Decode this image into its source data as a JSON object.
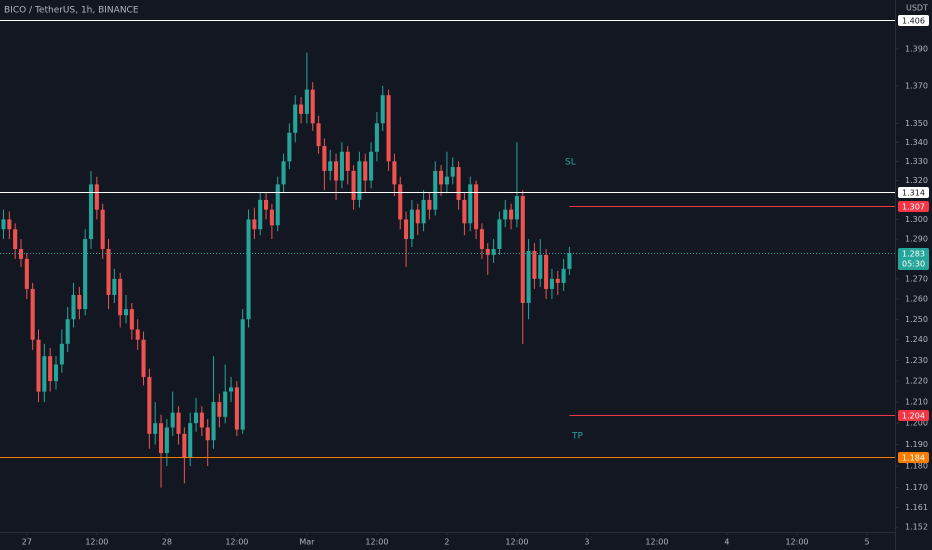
{
  "chart_data": {
    "type": "candlestick",
    "title": "BICO / TetherUS, 1h, BINANCE",
    "currency": "USDT",
    "log": true,
    "up_color": "#26a69a",
    "down_color": "#ef5350",
    "xlim": [
      -0.6,
      152.8
    ],
    "xticks": [
      {
        "value": 4,
        "label": "27"
      },
      {
        "value": 16,
        "label": "12:00"
      },
      {
        "value": 28,
        "label": "28"
      },
      {
        "value": 40,
        "label": "12:00"
      },
      {
        "value": 52,
        "label": "Mar"
      },
      {
        "value": 64,
        "label": "12:00"
      },
      {
        "value": 76,
        "label": "2"
      },
      {
        "value": 88,
        "label": "12:00"
      },
      {
        "value": 100,
        "label": "3"
      },
      {
        "value": 112,
        "label": "12:00"
      },
      {
        "value": 124,
        "label": "4"
      },
      {
        "value": 136,
        "label": "12:00"
      },
      {
        "value": 148,
        "label": "5"
      }
    ],
    "ylim": [
      1.148,
      1.417
    ],
    "yticks": [
      {
        "value": 1.39,
        "label": "1.390"
      },
      {
        "value": 1.37,
        "label": "1.370"
      },
      {
        "value": 1.35,
        "label": "1.350"
      },
      {
        "value": 1.34,
        "label": "1.340"
      },
      {
        "value": 1.33,
        "label": "1.330"
      },
      {
        "value": 1.32,
        "label": "1.320"
      },
      {
        "value": 1.3,
        "label": "1.300"
      },
      {
        "value": 1.29,
        "label": "1.290"
      },
      {
        "value": 1.27,
        "label": "1.270"
      },
      {
        "value": 1.26,
        "label": "1.260"
      },
      {
        "value": 1.25,
        "label": "1.250"
      },
      {
        "value": 1.24,
        "label": "1.240"
      },
      {
        "value": 1.23,
        "label": "1.230"
      },
      {
        "value": 1.22,
        "label": "1.220"
      },
      {
        "value": 1.21,
        "label": "1.210"
      },
      {
        "value": 1.2,
        "label": "1.200"
      },
      {
        "value": 1.19,
        "label": "1.190"
      },
      {
        "value": 1.18,
        "label": "1.180"
      },
      {
        "value": 1.17,
        "label": "1.170"
      },
      1.161,
      1.152
    ],
    "candles": [
      [
        1.295,
        1.305,
        1.29,
        1.3
      ],
      [
        1.3,
        1.304,
        1.29,
        1.295
      ],
      [
        1.295,
        1.298,
        1.28,
        1.285
      ],
      [
        1.285,
        1.29,
        1.276,
        1.28
      ],
      [
        1.28,
        1.283,
        1.26,
        1.265
      ],
      [
        1.265,
        1.268,
        1.235,
        1.24
      ],
      [
        1.24,
        1.245,
        1.21,
        1.215
      ],
      [
        1.215,
        1.238,
        1.21,
        1.232
      ],
      [
        1.232,
        1.236,
        1.215,
        1.22
      ],
      [
        1.22,
        1.232,
        1.216,
        1.228
      ],
      [
        1.228,
        1.245,
        1.224,
        1.238
      ],
      [
        1.238,
        1.256,
        1.234,
        1.25
      ],
      [
        1.25,
        1.268,
        1.246,
        1.262
      ],
      [
        1.262,
        1.266,
        1.25,
        1.255
      ],
      [
        1.255,
        1.295,
        1.252,
        1.29
      ],
      [
        1.29,
        1.325,
        1.285,
        1.318
      ],
      [
        1.318,
        1.322,
        1.3,
        1.305
      ],
      [
        1.305,
        1.308,
        1.28,
        1.285
      ],
      [
        1.285,
        1.29,
        1.255,
        1.262
      ],
      [
        1.262,
        1.275,
        1.258,
        1.27
      ],
      [
        1.27,
        1.273,
        1.246,
        1.252
      ],
      [
        1.252,
        1.262,
        1.248,
        1.255
      ],
      [
        1.255,
        1.258,
        1.24,
        1.245
      ],
      [
        1.245,
        1.25,
        1.235,
        1.24
      ],
      [
        1.24,
        1.244,
        1.218,
        1.222
      ],
      [
        1.222,
        1.226,
        1.188,
        1.195
      ],
      [
        1.195,
        1.21,
        1.19,
        1.2
      ],
      [
        1.2,
        1.204,
        1.17,
        1.186
      ],
      [
        1.186,
        1.202,
        1.18,
        1.198
      ],
      [
        1.198,
        1.215,
        1.194,
        1.205
      ],
      [
        1.205,
        1.208,
        1.19,
        1.195
      ],
      [
        1.195,
        1.198,
        1.172,
        1.184
      ],
      [
        1.184,
        1.205,
        1.18,
        1.2
      ],
      [
        1.2,
        1.212,
        1.196,
        1.205
      ],
      [
        1.205,
        1.208,
        1.194,
        1.198
      ],
      [
        1.198,
        1.202,
        1.18,
        1.192
      ],
      [
        1.192,
        1.232,
        1.188,
        1.21
      ],
      [
        1.21,
        1.214,
        1.198,
        1.203
      ],
      [
        1.203,
        1.228,
        1.2,
        1.215
      ],
      [
        1.215,
        1.222,
        1.21,
        1.217
      ],
      [
        1.217,
        1.22,
        1.194,
        1.197
      ],
      [
        1.197,
        1.255,
        1.195,
        1.25
      ],
      [
        1.25,
        1.305,
        1.246,
        1.3
      ],
      [
        1.3,
        1.306,
        1.29,
        1.295
      ],
      [
        1.295,
        1.314,
        1.292,
        1.31
      ],
      [
        1.31,
        1.314,
        1.3,
        1.305
      ],
      [
        1.305,
        1.308,
        1.29,
        1.297
      ],
      [
        1.297,
        1.322,
        1.294,
        1.318
      ],
      [
        1.318,
        1.334,
        1.314,
        1.33
      ],
      [
        1.33,
        1.35,
        1.326,
        1.345
      ],
      [
        1.345,
        1.365,
        1.34,
        1.36
      ],
      [
        1.36,
        1.364,
        1.35,
        1.355
      ],
      [
        1.355,
        1.388,
        1.35,
        1.368
      ],
      [
        1.368,
        1.372,
        1.346,
        1.35
      ],
      [
        1.35,
        1.354,
        1.334,
        1.338
      ],
      [
        1.338,
        1.342,
        1.315,
        1.325
      ],
      [
        1.325,
        1.336,
        1.32,
        1.33
      ],
      [
        1.33,
        1.334,
        1.31,
        1.32
      ],
      [
        1.32,
        1.34,
        1.316,
        1.335
      ],
      [
        1.335,
        1.338,
        1.318,
        1.325
      ],
      [
        1.325,
        1.328,
        1.305,
        1.31
      ],
      [
        1.31,
        1.335,
        1.306,
        1.33
      ],
      [
        1.33,
        1.334,
        1.314,
        1.32
      ],
      [
        1.32,
        1.34,
        1.316,
        1.335
      ],
      [
        1.335,
        1.356,
        1.33,
        1.35
      ],
      [
        1.35,
        1.37,
        1.346,
        1.365
      ],
      [
        1.365,
        1.368,
        1.325,
        1.33
      ],
      [
        1.33,
        1.334,
        1.312,
        1.318
      ],
      [
        1.318,
        1.322,
        1.295,
        1.3
      ],
      [
        1.3,
        1.304,
        1.276,
        1.29
      ],
      [
        1.29,
        1.31,
        1.286,
        1.305
      ],
      [
        1.305,
        1.308,
        1.292,
        1.298
      ],
      [
        1.298,
        1.315,
        1.294,
        1.31
      ],
      [
        1.31,
        1.314,
        1.3,
        1.305
      ],
      [
        1.305,
        1.33,
        1.302,
        1.325
      ],
      [
        1.325,
        1.328,
        1.312,
        1.318
      ],
      [
        1.318,
        1.335,
        1.314,
        1.322
      ],
      [
        1.322,
        1.332,
        1.318,
        1.327
      ],
      [
        1.327,
        1.33,
        1.305,
        1.31
      ],
      [
        1.31,
        1.314,
        1.292,
        1.298
      ],
      [
        1.298,
        1.322,
        1.294,
        1.318
      ],
      [
        1.318,
        1.32,
        1.29,
        1.295
      ],
      [
        1.295,
        1.298,
        1.28,
        1.285
      ],
      [
        1.285,
        1.288,
        1.272,
        1.282
      ],
      [
        1.282,
        1.29,
        1.278,
        1.285
      ],
      [
        1.285,
        1.304,
        1.282,
        1.3
      ],
      [
        1.3,
        1.31,
        1.296,
        1.305
      ],
      [
        1.305,
        1.308,
        1.295,
        1.3
      ],
      [
        1.3,
        1.34,
        1.296,
        1.312
      ],
      [
        1.312,
        1.315,
        1.238,
        1.258
      ],
      [
        1.258,
        1.29,
        1.25,
        1.284
      ],
      [
        1.284,
        1.288,
        1.265,
        1.27
      ],
      [
        1.27,
        1.29,
        1.266,
        1.282
      ],
      [
        1.282,
        1.285,
        1.26,
        1.265
      ],
      [
        1.265,
        1.275,
        1.26,
        1.27
      ],
      [
        1.27,
        1.274,
        1.262,
        1.268
      ],
      [
        1.268,
        1.28,
        1.264,
        1.275
      ],
      [
        1.275,
        1.286,
        1.272,
        1.283
      ]
    ],
    "lines": [
      {
        "value": 1.406,
        "color": "#ffffff",
        "style": "line"
      },
      {
        "value": 1.314,
        "color": "#ffffff",
        "style": "line"
      },
      {
        "value": 1.307,
        "color": "#f23645",
        "style": "ray"
      },
      {
        "value": 1.283,
        "color": "#26a69a",
        "style": "price",
        "countdown": "05:30"
      },
      {
        "value": 1.204,
        "color": "#f23645",
        "style": "ray"
      },
      {
        "value": 1.184,
        "color": "#f57c00",
        "style": "line"
      }
    ],
    "annotations": [
      {
        "text": "SL",
        "color": "#26a69a"
      },
      {
        "text": "TP",
        "color": "#26a69a"
      }
    ]
  }
}
